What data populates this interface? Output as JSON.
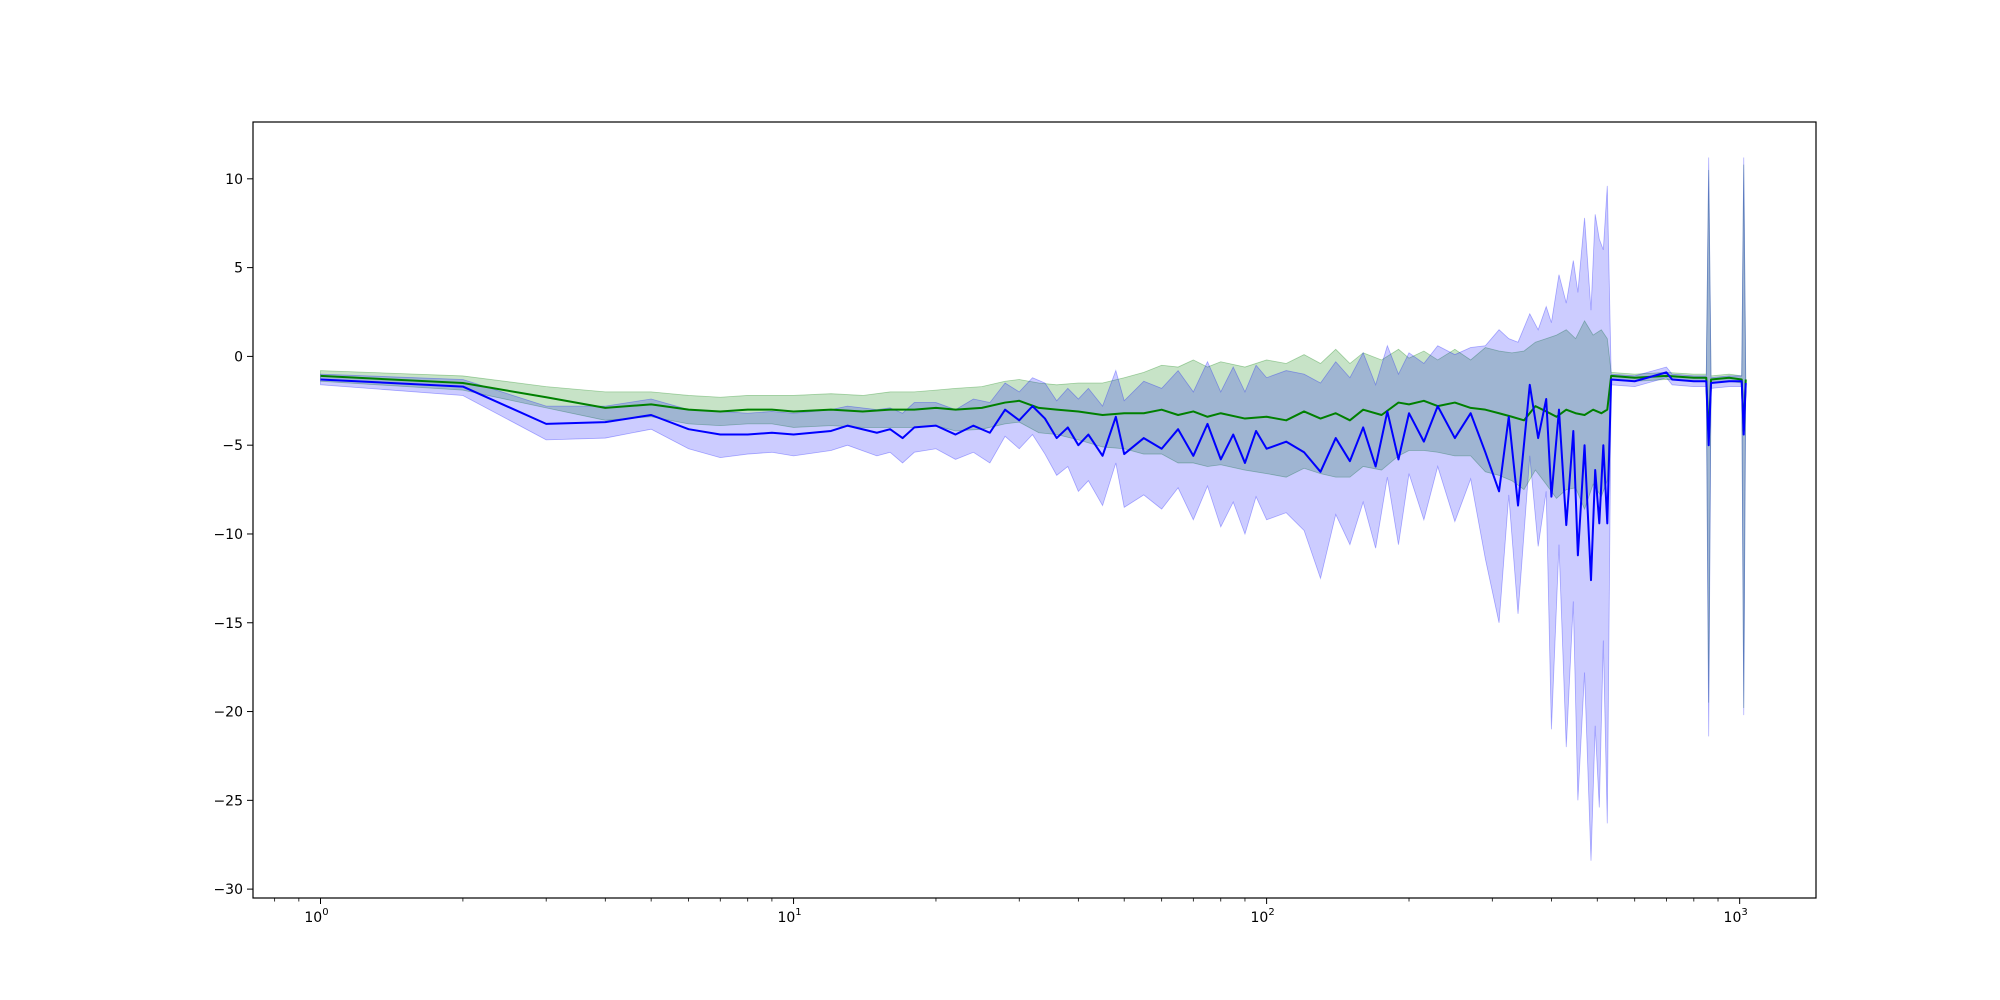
{
  "chart_data": {
    "type": "line",
    "title": "",
    "xlabel": "",
    "ylabel": "",
    "xscale": "log",
    "xlim": [
      0.72,
      1450
    ],
    "ylim": [
      -30.5,
      13.2
    ],
    "grid": false,
    "legend": "none",
    "x_ticks": [
      {
        "value": 1,
        "base": "10",
        "exp": "0"
      },
      {
        "value": 10,
        "base": "10",
        "exp": "1"
      },
      {
        "value": 100,
        "base": "10",
        "exp": "2"
      },
      {
        "value": 1000,
        "base": "10",
        "exp": "3"
      }
    ],
    "y_ticks": [
      {
        "value": 10,
        "label": "10"
      },
      {
        "value": 5,
        "label": "5"
      },
      {
        "value": 0,
        "label": "0"
      },
      {
        "value": -5,
        "label": "−5"
      },
      {
        "value": -10,
        "label": "−10"
      },
      {
        "value": -15,
        "label": "−15"
      },
      {
        "value": -20,
        "label": "−20"
      },
      {
        "value": -25,
        "label": "−25"
      },
      {
        "value": -30,
        "label": "−30"
      }
    ],
    "series": [
      {
        "color": "#008000",
        "band_color": "#008000",
        "band_opacity": 0.22,
        "points": [
          [
            1,
            -1.1,
            -0.8,
            -1.4
          ],
          [
            2,
            -1.5,
            -1.1,
            -1.9
          ],
          [
            3,
            -2.3,
            -1.7,
            -2.9
          ],
          [
            4,
            -2.9,
            -2.0,
            -3.6
          ],
          [
            5,
            -2.7,
            -2.0,
            -3.4
          ],
          [
            6,
            -3.0,
            -2.2,
            -3.8
          ],
          [
            7,
            -3.1,
            -2.3,
            -3.9
          ],
          [
            8,
            -3.0,
            -2.2,
            -3.8
          ],
          [
            9,
            -3.0,
            -2.2,
            -3.8
          ],
          [
            10,
            -3.1,
            -2.2,
            -4.0
          ],
          [
            12,
            -3.0,
            -2.1,
            -3.9
          ],
          [
            14,
            -3.1,
            -2.2,
            -4.0
          ],
          [
            16,
            -3.0,
            -2.0,
            -4.0
          ],
          [
            18,
            -3.0,
            -2.0,
            -4.0
          ],
          [
            20,
            -2.9,
            -1.9,
            -3.9
          ],
          [
            22,
            -3.0,
            -1.8,
            -4.2
          ],
          [
            25,
            -2.9,
            -1.7,
            -4.1
          ],
          [
            28,
            -2.6,
            -1.4,
            -3.8
          ],
          [
            30,
            -2.5,
            -1.3,
            -3.7
          ],
          [
            33,
            -2.9,
            -1.5,
            -4.3
          ],
          [
            36,
            -3.0,
            -1.6,
            -4.4
          ],
          [
            40,
            -3.1,
            -1.5,
            -4.7
          ],
          [
            45,
            -3.3,
            -1.5,
            -5.1
          ],
          [
            50,
            -3.2,
            -1.2,
            -5.2
          ],
          [
            55,
            -3.2,
            -0.9,
            -5.5
          ],
          [
            60,
            -3.0,
            -0.5,
            -5.5
          ],
          [
            65,
            -3.3,
            -0.6,
            -6.0
          ],
          [
            70,
            -3.1,
            -0.2,
            -6.0
          ],
          [
            75,
            -3.4,
            -0.6,
            -6.2
          ],
          [
            80,
            -3.2,
            -0.3,
            -6.1
          ],
          [
            90,
            -3.5,
            -0.6,
            -6.4
          ],
          [
            100,
            -3.4,
            -0.2,
            -6.6
          ],
          [
            110,
            -3.6,
            -0.4,
            -6.8
          ],
          [
            120,
            -3.1,
            0.1,
            -6.3
          ],
          [
            130,
            -3.5,
            -0.4,
            -6.6
          ],
          [
            140,
            -3.2,
            0.4,
            -6.8
          ],
          [
            150,
            -3.6,
            -0.4,
            -6.8
          ],
          [
            160,
            -3.0,
            0.2,
            -6.2
          ],
          [
            175,
            -3.3,
            -0.2,
            -6.4
          ],
          [
            190,
            -2.6,
            0.4,
            -5.6
          ],
          [
            200,
            -2.7,
            -0.1,
            -5.3
          ],
          [
            215,
            -2.5,
            0.3,
            -5.3
          ],
          [
            230,
            -2.8,
            -0.2,
            -5.4
          ],
          [
            250,
            -2.6,
            0.4,
            -5.6
          ],
          [
            270,
            -2.9,
            -0.2,
            -5.6
          ],
          [
            290,
            -3.0,
            0.5,
            -6.5
          ],
          [
            310,
            -3.2,
            0.3,
            -6.7
          ],
          [
            330,
            -3.4,
            0.2,
            -7.0
          ],
          [
            350,
            -3.6,
            0.3,
            -7.5
          ],
          [
            370,
            -2.8,
            0.8,
            -6.4
          ],
          [
            390,
            -3.1,
            1.0,
            -7.2
          ],
          [
            410,
            -3.4,
            1.2,
            -8.0
          ],
          [
            430,
            -3.0,
            1.5,
            -7.5
          ],
          [
            450,
            -3.2,
            1.0,
            -7.4
          ],
          [
            470,
            -3.3,
            2.0,
            -8.6
          ],
          [
            490,
            -3.0,
            1.2,
            -7.2
          ],
          [
            510,
            -3.2,
            1.5,
            -7.9
          ],
          [
            525,
            -3.0,
            1.0,
            -7.0
          ],
          [
            535,
            -1.1,
            -0.9,
            -1.3
          ],
          [
            600,
            -1.2,
            -1.0,
            -1.4
          ],
          [
            700,
            -1.1,
            -0.9,
            -1.3
          ],
          [
            800,
            -1.2,
            -1.0,
            -1.4
          ],
          [
            850,
            -1.2,
            -1.0,
            -1.4
          ],
          [
            860,
            -4.5,
            10.5,
            -19.5
          ],
          [
            870,
            -1.3,
            -1.1,
            -1.5
          ],
          [
            950,
            -1.2,
            -1.0,
            -1.4
          ],
          [
            1010,
            -1.3,
            -1.1,
            -1.5
          ],
          [
            1020,
            -4.2,
            10.8,
            -19.8
          ],
          [
            1030,
            -1.3,
            -1.1,
            -1.5
          ]
        ]
      },
      {
        "color": "#0000ff",
        "band_color": "#0000ff",
        "band_opacity": 0.2,
        "points": [
          [
            1,
            -1.3,
            -1.0,
            -1.6
          ],
          [
            2,
            -1.7,
            -1.3,
            -2.2
          ],
          [
            3,
            -3.8,
            -2.8,
            -4.7
          ],
          [
            4,
            -3.7,
            -2.8,
            -4.6
          ],
          [
            5,
            -3.3,
            -2.4,
            -4.1
          ],
          [
            6,
            -4.1,
            -3.0,
            -5.2
          ],
          [
            7,
            -4.4,
            -3.1,
            -5.7
          ],
          [
            8,
            -4.4,
            -3.2,
            -5.5
          ],
          [
            9,
            -4.3,
            -3.1,
            -5.4
          ],
          [
            10,
            -4.4,
            -3.2,
            -5.6
          ],
          [
            12,
            -4.2,
            -3.0,
            -5.3
          ],
          [
            13,
            -3.9,
            -2.8,
            -5.0
          ],
          [
            15,
            -4.3,
            -3.0,
            -5.6
          ],
          [
            16,
            -4.1,
            -2.9,
            -5.4
          ],
          [
            17,
            -4.6,
            -3.2,
            -6.0
          ],
          [
            18,
            -4.0,
            -2.6,
            -5.4
          ],
          [
            20,
            -3.9,
            -2.6,
            -5.2
          ],
          [
            22,
            -4.4,
            -3.0,
            -5.8
          ],
          [
            24,
            -3.9,
            -2.4,
            -5.4
          ],
          [
            26,
            -4.3,
            -2.6,
            -6.0
          ],
          [
            28,
            -3.0,
            -1.5,
            -4.5
          ],
          [
            30,
            -3.6,
            -2.0,
            -5.2
          ],
          [
            32,
            -2.8,
            -1.2,
            -4.4
          ],
          [
            34,
            -3.5,
            -1.5,
            -5.5
          ],
          [
            36,
            -4.6,
            -2.5,
            -6.7
          ],
          [
            38,
            -4.0,
            -1.8,
            -6.2
          ],
          [
            40,
            -5.0,
            -2.4,
            -7.6
          ],
          [
            42,
            -4.4,
            -1.8,
            -7.0
          ],
          [
            45,
            -5.6,
            -2.8,
            -8.4
          ],
          [
            48,
            -3.4,
            -0.8,
            -6.0
          ],
          [
            50,
            -5.5,
            -2.5,
            -8.5
          ],
          [
            55,
            -4.6,
            -1.4,
            -7.8
          ],
          [
            60,
            -5.2,
            -1.8,
            -8.6
          ],
          [
            65,
            -4.1,
            -0.8,
            -7.4
          ],
          [
            70,
            -5.6,
            -2.0,
            -9.2
          ],
          [
            75,
            -3.8,
            -0.3,
            -7.3
          ],
          [
            80,
            -5.8,
            -2.0,
            -9.6
          ],
          [
            85,
            -4.4,
            -0.6,
            -8.2
          ],
          [
            90,
            -6.0,
            -2.0,
            -10.0
          ],
          [
            95,
            -4.2,
            -0.5,
            -7.9
          ],
          [
            100,
            -5.2,
            -1.2,
            -9.2
          ],
          [
            110,
            -4.8,
            -0.8,
            -8.8
          ],
          [
            120,
            -5.4,
            -1.0,
            -9.8
          ],
          [
            130,
            -6.5,
            -1.5,
            -12.5
          ],
          [
            140,
            -4.6,
            -0.3,
            -8.9
          ],
          [
            150,
            -5.9,
            -1.2,
            -10.6
          ],
          [
            160,
            -4.0,
            0.2,
            -8.2
          ],
          [
            170,
            -6.2,
            -1.6,
            -10.8
          ],
          [
            180,
            -3.1,
            0.6,
            -6.8
          ],
          [
            190,
            -5.8,
            -1.0,
            -10.6
          ],
          [
            200,
            -3.2,
            0.2,
            -6.6
          ],
          [
            215,
            -4.8,
            -0.4,
            -9.2
          ],
          [
            230,
            -2.8,
            0.6,
            -6.2
          ],
          [
            250,
            -4.6,
            0.1,
            -9.3
          ],
          [
            270,
            -3.2,
            0.5,
            -6.9
          ],
          [
            290,
            -5.4,
            0.6,
            -11.4
          ],
          [
            310,
            -7.6,
            1.5,
            -15.0
          ],
          [
            325,
            -3.4,
            1.0,
            -7.8
          ],
          [
            340,
            -8.4,
            0.8,
            -14.5
          ],
          [
            360,
            -1.6,
            2.4,
            -5.6
          ],
          [
            375,
            -4.6,
            1.5,
            -10.7
          ],
          [
            390,
            -2.4,
            2.8,
            -7.6
          ],
          [
            400,
            -7.9,
            1.9,
            -21.0
          ],
          [
            415,
            -3.0,
            4.6,
            -10.6
          ],
          [
            430,
            -9.5,
            3.0,
            -22.0
          ],
          [
            445,
            -4.2,
            5.4,
            -13.8
          ],
          [
            455,
            -11.2,
            3.6,
            -25.0
          ],
          [
            470,
            -5.0,
            7.8,
            -17.8
          ],
          [
            485,
            -12.6,
            2.6,
            -28.4
          ],
          [
            495,
            -6.4,
            8.0,
            -20.8
          ],
          [
            505,
            -9.4,
            6.6,
            -25.4
          ],
          [
            515,
            -5.0,
            6.0,
            -16.0
          ],
          [
            525,
            -9.4,
            9.6,
            -26.3
          ],
          [
            535,
            -1.3,
            -1.0,
            -1.6
          ],
          [
            600,
            -1.4,
            -1.1,
            -1.7
          ],
          [
            700,
            -0.9,
            -0.6,
            -1.2
          ],
          [
            720,
            -1.3,
            -1.0,
            -1.6
          ],
          [
            800,
            -1.4,
            -1.1,
            -1.7
          ],
          [
            850,
            -1.4,
            -1.1,
            -1.7
          ],
          [
            860,
            -5.0,
            11.2,
            -21.4
          ],
          [
            870,
            -1.5,
            -1.2,
            -1.8
          ],
          [
            950,
            -1.4,
            -1.1,
            -1.7
          ],
          [
            1010,
            -1.4,
            -1.1,
            -1.7
          ],
          [
            1020,
            -4.4,
            11.2,
            -20.2
          ],
          [
            1030,
            -1.5,
            -1.2,
            -1.8
          ]
        ]
      }
    ]
  }
}
